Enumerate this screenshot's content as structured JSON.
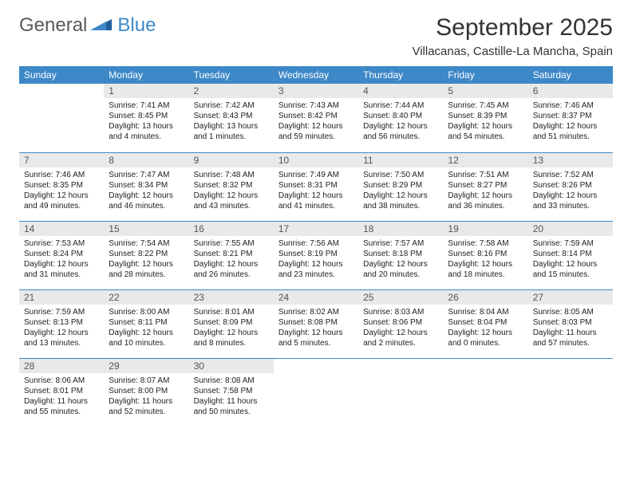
{
  "logo": {
    "part1": "General",
    "part2": "Blue"
  },
  "title": "September 2025",
  "location": "Villacanas, Castille-La Mancha, Spain",
  "colors": {
    "header_bg": "#3d88c7",
    "header_text": "#ffffff",
    "daynum_bg": "#e9e9e9",
    "daynum_text": "#555555",
    "border": "#3d88c7",
    "logo_gray": "#595959",
    "logo_blue": "#3d88c7"
  },
  "dayHeaders": [
    "Sunday",
    "Monday",
    "Tuesday",
    "Wednesday",
    "Thursday",
    "Friday",
    "Saturday"
  ],
  "weeks": [
    [
      null,
      {
        "n": "1",
        "sr": "7:41 AM",
        "ss": "8:45 PM",
        "dl": "13 hours and 4 minutes."
      },
      {
        "n": "2",
        "sr": "7:42 AM",
        "ss": "8:43 PM",
        "dl": "13 hours and 1 minutes."
      },
      {
        "n": "3",
        "sr": "7:43 AM",
        "ss": "8:42 PM",
        "dl": "12 hours and 59 minutes."
      },
      {
        "n": "4",
        "sr": "7:44 AM",
        "ss": "8:40 PM",
        "dl": "12 hours and 56 minutes."
      },
      {
        "n": "5",
        "sr": "7:45 AM",
        "ss": "8:39 PM",
        "dl": "12 hours and 54 minutes."
      },
      {
        "n": "6",
        "sr": "7:46 AM",
        "ss": "8:37 PM",
        "dl": "12 hours and 51 minutes."
      }
    ],
    [
      {
        "n": "7",
        "sr": "7:46 AM",
        "ss": "8:35 PM",
        "dl": "12 hours and 49 minutes."
      },
      {
        "n": "8",
        "sr": "7:47 AM",
        "ss": "8:34 PM",
        "dl": "12 hours and 46 minutes."
      },
      {
        "n": "9",
        "sr": "7:48 AM",
        "ss": "8:32 PM",
        "dl": "12 hours and 43 minutes."
      },
      {
        "n": "10",
        "sr": "7:49 AM",
        "ss": "8:31 PM",
        "dl": "12 hours and 41 minutes."
      },
      {
        "n": "11",
        "sr": "7:50 AM",
        "ss": "8:29 PM",
        "dl": "12 hours and 38 minutes."
      },
      {
        "n": "12",
        "sr": "7:51 AM",
        "ss": "8:27 PM",
        "dl": "12 hours and 36 minutes."
      },
      {
        "n": "13",
        "sr": "7:52 AM",
        "ss": "8:26 PM",
        "dl": "12 hours and 33 minutes."
      }
    ],
    [
      {
        "n": "14",
        "sr": "7:53 AM",
        "ss": "8:24 PM",
        "dl": "12 hours and 31 minutes."
      },
      {
        "n": "15",
        "sr": "7:54 AM",
        "ss": "8:22 PM",
        "dl": "12 hours and 28 minutes."
      },
      {
        "n": "16",
        "sr": "7:55 AM",
        "ss": "8:21 PM",
        "dl": "12 hours and 26 minutes."
      },
      {
        "n": "17",
        "sr": "7:56 AM",
        "ss": "8:19 PM",
        "dl": "12 hours and 23 minutes."
      },
      {
        "n": "18",
        "sr": "7:57 AM",
        "ss": "8:18 PM",
        "dl": "12 hours and 20 minutes."
      },
      {
        "n": "19",
        "sr": "7:58 AM",
        "ss": "8:16 PM",
        "dl": "12 hours and 18 minutes."
      },
      {
        "n": "20",
        "sr": "7:59 AM",
        "ss": "8:14 PM",
        "dl": "12 hours and 15 minutes."
      }
    ],
    [
      {
        "n": "21",
        "sr": "7:59 AM",
        "ss": "8:13 PM",
        "dl": "12 hours and 13 minutes."
      },
      {
        "n": "22",
        "sr": "8:00 AM",
        "ss": "8:11 PM",
        "dl": "12 hours and 10 minutes."
      },
      {
        "n": "23",
        "sr": "8:01 AM",
        "ss": "8:09 PM",
        "dl": "12 hours and 8 minutes."
      },
      {
        "n": "24",
        "sr": "8:02 AM",
        "ss": "8:08 PM",
        "dl": "12 hours and 5 minutes."
      },
      {
        "n": "25",
        "sr": "8:03 AM",
        "ss": "8:06 PM",
        "dl": "12 hours and 2 minutes."
      },
      {
        "n": "26",
        "sr": "8:04 AM",
        "ss": "8:04 PM",
        "dl": "12 hours and 0 minutes."
      },
      {
        "n": "27",
        "sr": "8:05 AM",
        "ss": "8:03 PM",
        "dl": "11 hours and 57 minutes."
      }
    ],
    [
      {
        "n": "28",
        "sr": "8:06 AM",
        "ss": "8:01 PM",
        "dl": "11 hours and 55 minutes."
      },
      {
        "n": "29",
        "sr": "8:07 AM",
        "ss": "8:00 PM",
        "dl": "11 hours and 52 minutes."
      },
      {
        "n": "30",
        "sr": "8:08 AM",
        "ss": "7:58 PM",
        "dl": "11 hours and 50 minutes."
      },
      null,
      null,
      null,
      null
    ]
  ],
  "labels": {
    "sunrise": "Sunrise:",
    "sunset": "Sunset:",
    "daylight": "Daylight:"
  }
}
